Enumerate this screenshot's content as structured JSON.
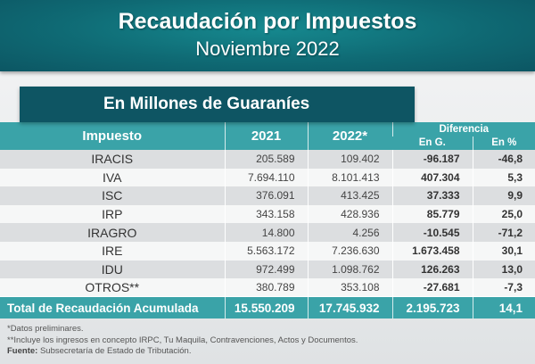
{
  "header": {
    "title": "Recaudación por Impuestos",
    "subtitle": "Noviembre 2022"
  },
  "banner": "En Millones de Guaraníes",
  "table": {
    "headers": {
      "impuesto": "Impuesto",
      "y2021": "2021",
      "y2022": "2022*",
      "diferencia": "Diferencia",
      "en_g": "En G.",
      "en_pct": "En %"
    },
    "rows": [
      {
        "name": "IRACIS",
        "y2021": "205.589",
        "y2022": "109.402",
        "diff": "-96.187",
        "pct": "-46,8"
      },
      {
        "name": "IVA",
        "y2021": "7.694.110",
        "y2022": "8.101.413",
        "diff": "407.304",
        "pct": "5,3"
      },
      {
        "name": "ISC",
        "y2021": "376.091",
        "y2022": "413.425",
        "diff": "37.333",
        "pct": "9,9"
      },
      {
        "name": "IRP",
        "y2021": "343.158",
        "y2022": "428.936",
        "diff": "85.779",
        "pct": "25,0"
      },
      {
        "name": "IRAGRO",
        "y2021": "14.800",
        "y2022": "4.256",
        "diff": "-10.545",
        "pct": "-71,2"
      },
      {
        "name": "IRE",
        "y2021": "5.563.172",
        "y2022": "7.236.630",
        "diff": "1.673.458",
        "pct": "30,1"
      },
      {
        "name": "IDU",
        "y2021": "972.499",
        "y2022": "1.098.762",
        "diff": "126.263",
        "pct": "13,0"
      },
      {
        "name": "OTROS**",
        "y2021": "380.789",
        "y2022": "353.108",
        "diff": "-27.681",
        "pct": "-7,3"
      }
    ],
    "total": {
      "name": "Total de Recaudación Acumulada",
      "y2021": "15.550.209",
      "y2022": "17.745.932",
      "diff": "2.195.723",
      "pct": "14,1"
    }
  },
  "notes": {
    "n1": "*Datos preliminares.",
    "n2": "**Incluye los ingresos en concepto IRPC, Tu Maquila, Contravenciones, Actos y Documentos.",
    "source_label": "Fuente:",
    "source": " Subsecretaría de Estado de Tributación."
  }
}
